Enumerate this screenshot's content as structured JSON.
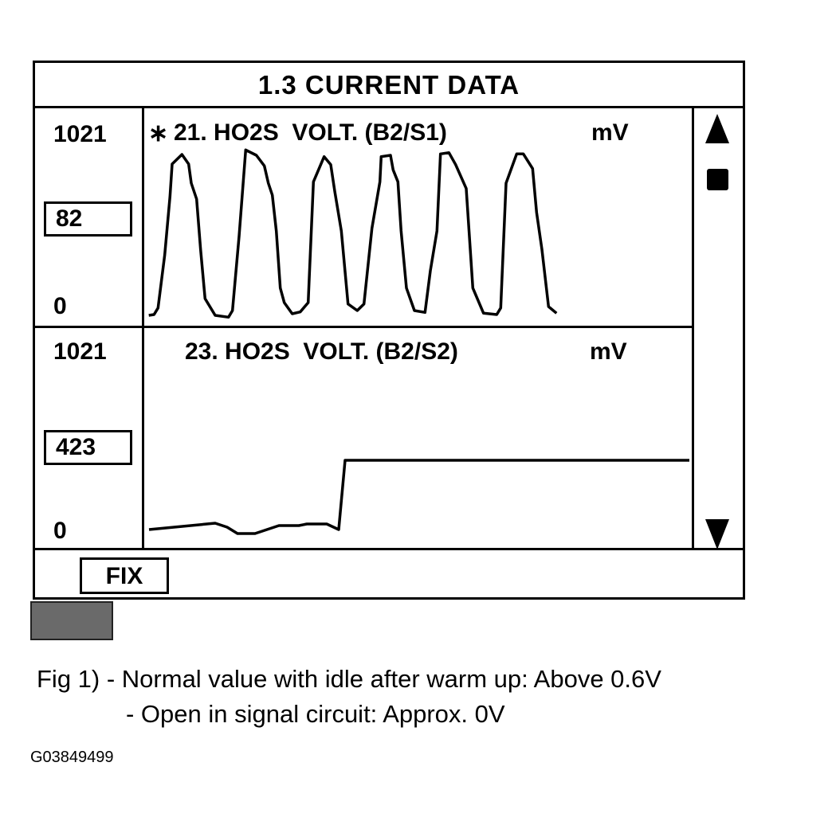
{
  "screen": {
    "title": "1.3  CURRENT  DATA",
    "panels": [
      {
        "marker": "∗",
        "label": "21. HO2S  VOLT. (B2/S1)",
        "unit": "mV",
        "max": "1021",
        "min": "0",
        "value": "82"
      },
      {
        "marker": "",
        "label": "23. HO2S  VOLT. (B2/S2)",
        "unit": "mV",
        "max": "1021",
        "min": "0",
        "value": "423"
      }
    ],
    "scroll_up_icon": "triangle-up",
    "scroll_thumb_icon": "square",
    "scroll_down_icon": "triangle-down",
    "fix_label": "FIX"
  },
  "caption": {
    "line1": "Fig 1) - Normal value with idle after warm up: Above 0.6V",
    "line2": "- Open in signal circuit: Approx. 0V"
  },
  "figure_code": "G03849499"
}
